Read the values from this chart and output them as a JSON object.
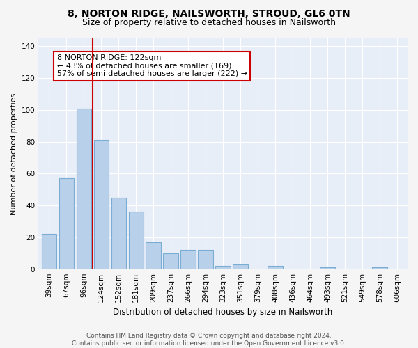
{
  "title": "8, NORTON RIDGE, NAILSWORTH, STROUD, GL6 0TN",
  "subtitle": "Size of property relative to detached houses in Nailsworth",
  "xlabel": "Distribution of detached houses by size in Nailsworth",
  "ylabel": "Number of detached properties",
  "categories": [
    "39sqm",
    "67sqm",
    "96sqm",
    "124sqm",
    "152sqm",
    "181sqm",
    "209sqm",
    "237sqm",
    "266sqm",
    "294sqm",
    "323sqm",
    "351sqm",
    "379sqm",
    "408sqm",
    "436sqm",
    "464sqm",
    "493sqm",
    "521sqm",
    "549sqm",
    "578sqm",
    "606sqm"
  ],
  "values": [
    22,
    57,
    101,
    81,
    45,
    36,
    17,
    10,
    12,
    12,
    2,
    3,
    0,
    2,
    0,
    0,
    1,
    0,
    0,
    1,
    0
  ],
  "bar_color": "#b8d0ea",
  "bar_edge_color": "#7aadd4",
  "background_color": "#e8eef8",
  "grid_color": "#ffffff",
  "vline_color": "#cc0000",
  "vline_index": 2.5,
  "annotation_text": "8 NORTON RIDGE: 122sqm\n← 43% of detached houses are smaller (169)\n57% of semi-detached houses are larger (222) →",
  "annotation_box_facecolor": "#ffffff",
  "annotation_box_edgecolor": "#cc0000",
  "ylim": [
    0,
    145
  ],
  "yticks": [
    0,
    20,
    40,
    60,
    80,
    100,
    120,
    140
  ],
  "footer_text": "Contains HM Land Registry data © Crown copyright and database right 2024.\nContains public sector information licensed under the Open Government Licence v3.0.",
  "fig_facecolor": "#f5f5f5",
  "title_fontsize": 10,
  "subtitle_fontsize": 9,
  "axis_label_fontsize": 8,
  "tick_fontsize": 7.5,
  "footer_fontsize": 6.5
}
